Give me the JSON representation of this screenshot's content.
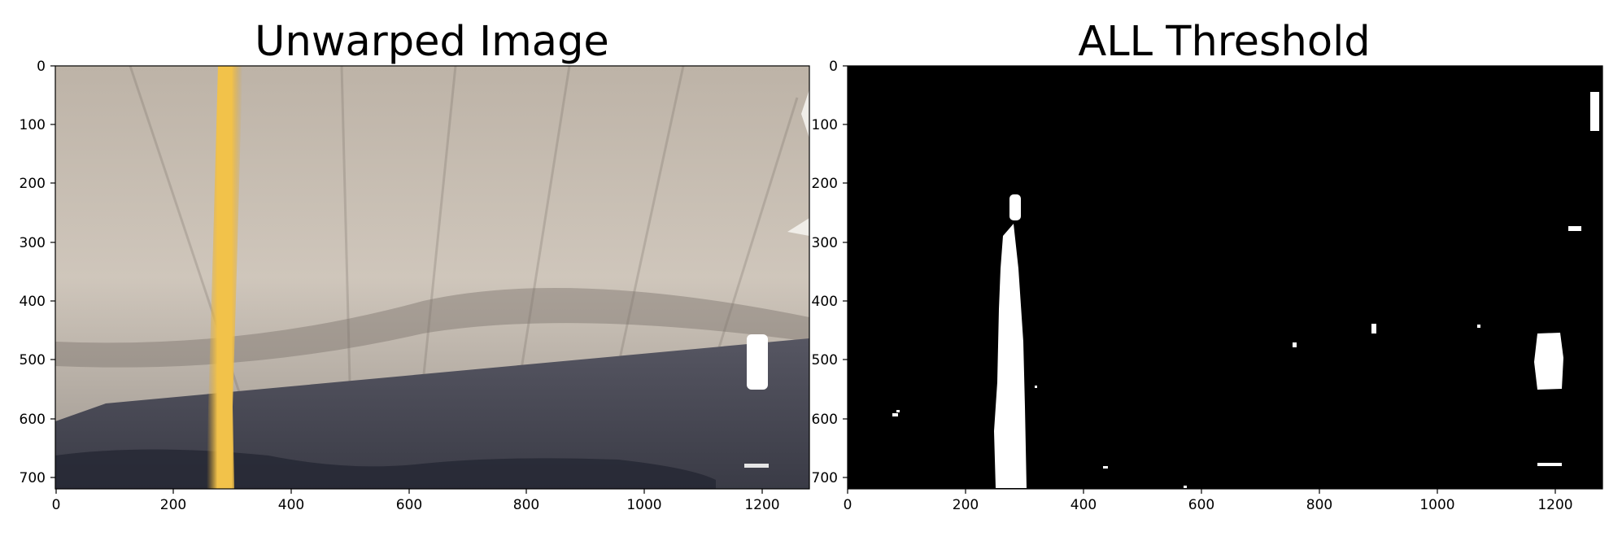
{
  "figure": {
    "panels": [
      {
        "title": "Unwarped Image",
        "x_ticks": [
          "0",
          "200",
          "400",
          "600",
          "800",
          "1000",
          "1200"
        ],
        "y_ticks": [
          "0",
          "100",
          "200",
          "300",
          "400",
          "500",
          "600",
          "700"
        ],
        "x_range": [
          0,
          1280
        ],
        "y_range": [
          0,
          720
        ],
        "colors": {
          "sky": "#c9bfb3",
          "road": "#4a4a55",
          "yellow_line": "#f0c040",
          "white_line": "#ffffff"
        }
      },
      {
        "title": "ALL Threshold",
        "x_ticks": [
          "0",
          "200",
          "400",
          "600",
          "800",
          "1000",
          "1200"
        ],
        "y_ticks": [
          "0",
          "100",
          "200",
          "300",
          "400",
          "500",
          "600",
          "700"
        ],
        "x_range": [
          0,
          1280
        ],
        "y_range": [
          0,
          720
        ],
        "colors": {
          "background": "#000000",
          "foreground": "#ffffff"
        }
      }
    ]
  }
}
